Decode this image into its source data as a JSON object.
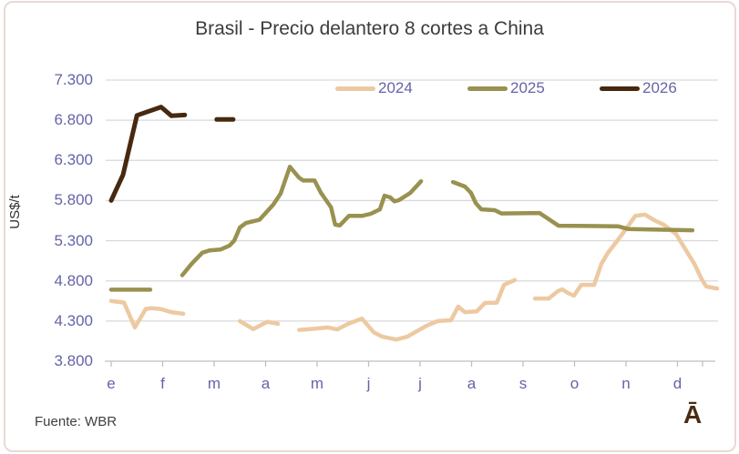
{
  "header": {
    "title": "Brasil - Precio delantero 8 cortes a China"
  },
  "footer": {
    "source": "Fuente: WBR",
    "logo_glyph": "Ā"
  },
  "colors": {
    "series_2024": "#edc9a2",
    "series_2025": "#99914f",
    "series_2026": "#46290f",
    "axis_labels": "#6364a8",
    "gridline": "#d9d9d9",
    "axis_line": "#bfbfbf",
    "frame_border": "#e9d9d6"
  },
  "chart_data": {
    "type": "line",
    "title": "Brasil - Precio delantero 8 cortes a China",
    "xlabel": "",
    "ylabel": "US$/t",
    "ylim": [
      3800,
      7300
    ],
    "ytick_step": 500,
    "yticklabels": [
      "7.300",
      "6.800",
      "6.300",
      "5.800",
      "5.300",
      "4.800",
      "4.300",
      "3.800"
    ],
    "xticklabels": [
      "e",
      "f",
      "m",
      "a",
      "m",
      "j",
      "j",
      "a",
      "s",
      "o",
      "n",
      "d"
    ],
    "grid": true,
    "legend_position": "top-inside-right",
    "legend": [
      {
        "name": "2024",
        "color": "#edc9a2"
      },
      {
        "name": "2025",
        "color": "#99914f"
      },
      {
        "name": "2026",
        "color": "#46290f"
      }
    ],
    "series": [
      {
        "name": "2024",
        "color": "#edc9a2",
        "x_unit": "month_index_0_based_weekly_fraction",
        "y_unit": "US$/t",
        "segments": [
          [
            [
              0.0,
              4550
            ],
            [
              0.25,
              4530
            ],
            [
              0.46,
              4220
            ],
            [
              0.67,
              4450
            ],
            [
              0.78,
              4460
            ],
            [
              0.96,
              4450
            ],
            [
              1.17,
              4410
            ],
            [
              1.4,
              4390
            ]
          ],
          [
            [
              2.5,
              4300
            ],
            [
              2.76,
              4200
            ],
            [
              3.03,
              4290
            ],
            [
              3.24,
              4265
            ]
          ],
          [
            [
              3.65,
              4190
            ],
            [
              3.86,
              4200
            ],
            [
              4.21,
              4220
            ],
            [
              4.39,
              4195
            ],
            [
              4.62,
              4270
            ],
            [
              4.87,
              4330
            ],
            [
              5.1,
              4160
            ],
            [
              5.27,
              4105
            ],
            [
              5.54,
              4070
            ],
            [
              5.75,
              4105
            ],
            [
              6.12,
              4240
            ],
            [
              6.34,
              4300
            ],
            [
              6.6,
              4310
            ],
            [
              6.74,
              4480
            ],
            [
              6.87,
              4410
            ],
            [
              7.1,
              4420
            ],
            [
              7.26,
              4525
            ],
            [
              7.49,
              4530
            ],
            [
              7.63,
              4750
            ],
            [
              7.84,
              4810
            ]
          ],
          [
            [
              8.23,
              4580
            ],
            [
              8.5,
              4580
            ],
            [
              8.67,
              4670
            ],
            [
              8.76,
              4695
            ],
            [
              8.87,
              4650
            ],
            [
              8.99,
              4615
            ],
            [
              9.13,
              4750
            ],
            [
              9.38,
              4750
            ],
            [
              9.52,
              5010
            ],
            [
              9.65,
              5150
            ],
            [
              9.73,
              5215
            ],
            [
              9.96,
              5410
            ],
            [
              10.18,
              5610
            ],
            [
              10.37,
              5625
            ],
            [
              10.55,
              5555
            ],
            [
              10.73,
              5500
            ],
            [
              10.97,
              5385
            ],
            [
              11.33,
              5010
            ],
            [
              11.47,
              4820
            ],
            [
              11.56,
              4730
            ],
            [
              11.77,
              4705
            ]
          ]
        ]
      },
      {
        "name": "2025",
        "color": "#99914f",
        "x_unit": "month_index_0_based_weekly_fraction",
        "y_unit": "US$/t",
        "segments": [
          [
            [
              0.0,
              4690
            ],
            [
              0.76,
              4690
            ]
          ],
          [
            [
              1.38,
              4870
            ],
            [
              1.56,
              5010
            ],
            [
              1.77,
              5150
            ],
            [
              1.91,
              5180
            ],
            [
              2.12,
              5190
            ],
            [
              2.3,
              5240
            ],
            [
              2.39,
              5300
            ],
            [
              2.5,
              5465
            ],
            [
              2.62,
              5520
            ],
            [
              2.88,
              5560
            ],
            [
              3.15,
              5750
            ],
            [
              3.29,
              5885
            ],
            [
              3.47,
              6220
            ],
            [
              3.65,
              6085
            ],
            [
              3.73,
              6050
            ],
            [
              3.95,
              6050
            ],
            [
              4.07,
              5900
            ],
            [
              4.27,
              5715
            ],
            [
              4.35,
              5500
            ],
            [
              4.44,
              5490
            ],
            [
              4.62,
              5610
            ],
            [
              4.88,
              5610
            ],
            [
              5.04,
              5635
            ],
            [
              5.22,
              5690
            ],
            [
              5.31,
              5860
            ],
            [
              5.42,
              5840
            ],
            [
              5.5,
              5790
            ],
            [
              5.59,
              5805
            ],
            [
              5.81,
              5895
            ],
            [
              6.02,
              6040
            ]
          ],
          [
            [
              6.64,
              6030
            ],
            [
              6.87,
              5975
            ],
            [
              6.99,
              5895
            ],
            [
              7.08,
              5770
            ],
            [
              7.19,
              5690
            ],
            [
              7.45,
              5680
            ],
            [
              7.58,
              5640
            ],
            [
              8.32,
              5645
            ],
            [
              8.69,
              5487
            ],
            [
              9.84,
              5480
            ],
            [
              10.05,
              5445
            ],
            [
              11.29,
              5430
            ]
          ]
        ]
      },
      {
        "name": "2026",
        "color": "#46290f",
        "x_unit": "month_index_0_based_weekly_fraction",
        "y_unit": "US$/t",
        "segments": [
          [
            [
              0.0,
              5800
            ],
            [
              0.23,
              6120
            ],
            [
              0.5,
              6860
            ],
            [
              0.97,
              6965
            ],
            [
              1.17,
              6855
            ],
            [
              1.43,
              6865
            ]
          ],
          [
            [
              2.05,
              6810
            ],
            [
              2.37,
              6810
            ]
          ]
        ]
      }
    ]
  }
}
